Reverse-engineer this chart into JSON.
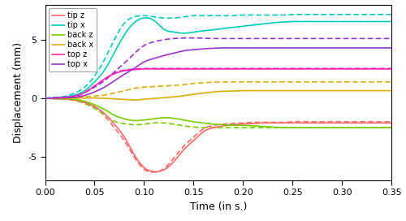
{
  "title": "",
  "xlabel": "Time (in s.)",
  "ylabel": "Displacement (mm)",
  "xlim": [
    0.0,
    0.35
  ],
  "ylim": [
    -7.0,
    8.0
  ],
  "series": {
    "tip_z": {
      "label": "tip z",
      "color": "#FF6666",
      "solid_points_y": [
        0.0,
        -0.03,
        -0.07,
        -0.15,
        -0.35,
        -0.7,
        -1.3,
        -2.2,
        -3.3,
        -4.8,
        -5.9,
        -6.25,
        -6.1,
        -5.4,
        -4.4,
        -3.6,
        -2.85,
        -2.5,
        -2.35,
        -2.25,
        -2.2,
        -2.15,
        -2.1,
        -2.1,
        -2.1,
        -2.1,
        -2.1,
        -2.1,
        -2.1,
        -2.1,
        -2.1,
        -2.1,
        -2.1,
        -2.1,
        -2.1,
        -2.1
      ],
      "dashed_points_y": [
        0.0,
        -0.03,
        -0.08,
        -0.18,
        -0.4,
        -0.8,
        -1.5,
        -2.5,
        -3.6,
        -5.0,
        -6.05,
        -6.3,
        -6.0,
        -5.1,
        -4.1,
        -3.3,
        -2.6,
        -2.3,
        -2.2,
        -2.15,
        -2.1,
        -2.05,
        -2.05,
        -2.05,
        -2.05,
        -2.0,
        -2.0,
        -2.0,
        -2.0,
        -2.0,
        -2.0,
        -2.0,
        -2.0,
        -2.0,
        -2.0,
        -2.0
      ]
    },
    "tip_x": {
      "label": "tip x",
      "color": "#00CCBB",
      "solid_points_y": [
        0.0,
        0.04,
        0.12,
        0.28,
        0.65,
        1.4,
        2.4,
        3.9,
        5.4,
        6.45,
        6.85,
        6.65,
        5.9,
        5.65,
        5.55,
        5.65,
        5.75,
        5.85,
        5.95,
        6.05,
        6.15,
        6.25,
        6.35,
        6.45,
        6.5,
        6.55,
        6.55,
        6.55,
        6.55,
        6.55,
        6.55,
        6.55,
        6.55,
        6.55,
        6.55,
        6.55
      ],
      "dashed_points_y": [
        0.0,
        0.08,
        0.18,
        0.45,
        0.95,
        1.9,
        3.3,
        5.0,
        6.4,
        6.95,
        7.05,
        6.95,
        6.85,
        6.85,
        6.95,
        7.05,
        7.05,
        7.05,
        7.05,
        7.05,
        7.1,
        7.1,
        7.1,
        7.1,
        7.1,
        7.15,
        7.15,
        7.15,
        7.15,
        7.15,
        7.15,
        7.15,
        7.15,
        7.15,
        7.15,
        7.15
      ]
    },
    "back_z": {
      "label": "back z",
      "color": "#77CC00",
      "solid_points_y": [
        0.0,
        -0.02,
        -0.04,
        -0.09,
        -0.25,
        -0.55,
        -0.95,
        -1.45,
        -1.75,
        -1.9,
        -1.85,
        -1.75,
        -1.65,
        -1.7,
        -1.85,
        -2.0,
        -2.1,
        -2.2,
        -2.25,
        -2.3,
        -2.3,
        -2.35,
        -2.4,
        -2.45,
        -2.5,
        -2.5,
        -2.5,
        -2.5,
        -2.5,
        -2.5,
        -2.5,
        -2.5,
        -2.5,
        -2.5,
        -2.5,
        -2.5
      ],
      "dashed_points_y": [
        0.0,
        -0.04,
        -0.09,
        -0.18,
        -0.45,
        -0.85,
        -1.4,
        -1.95,
        -2.15,
        -2.25,
        -2.2,
        -2.1,
        -2.1,
        -2.2,
        -2.35,
        -2.45,
        -2.5,
        -2.5,
        -2.5,
        -2.5,
        -2.5,
        -2.5,
        -2.5,
        -2.5,
        -2.5,
        -2.5,
        -2.5,
        -2.5,
        -2.5,
        -2.5,
        -2.5,
        -2.5,
        -2.5,
        -2.5,
        -2.5,
        -2.5
      ]
    },
    "back_x": {
      "label": "back x",
      "color": "#DDAA00",
      "solid_points_y": [
        0.0,
        0.005,
        0.01,
        0.02,
        0.03,
        0.03,
        0.0,
        -0.05,
        -0.1,
        -0.15,
        -0.08,
        -0.02,
        0.05,
        0.12,
        0.22,
        0.35,
        0.45,
        0.55,
        0.6,
        0.62,
        0.65,
        0.65,
        0.65,
        0.65,
        0.65,
        0.65,
        0.65,
        0.65,
        0.65,
        0.65,
        0.65,
        0.65,
        0.65,
        0.65,
        0.65,
        0.65
      ],
      "dashed_points_y": [
        0.0,
        0.02,
        0.04,
        0.08,
        0.14,
        0.19,
        0.28,
        0.45,
        0.65,
        0.85,
        0.95,
        1.0,
        1.05,
        1.1,
        1.18,
        1.27,
        1.33,
        1.38,
        1.4,
        1.4,
        1.4,
        1.4,
        1.4,
        1.4,
        1.4,
        1.4,
        1.4,
        1.4,
        1.4,
        1.4,
        1.4,
        1.4,
        1.4,
        1.4,
        1.4,
        1.4
      ]
    },
    "top_z": {
      "label": "top z",
      "color": "#FF22BB",
      "solid_points_y": [
        0.0,
        0.04,
        0.1,
        0.2,
        0.5,
        1.05,
        1.65,
        2.1,
        2.35,
        2.45,
        2.5,
        2.5,
        2.5,
        2.5,
        2.5,
        2.5,
        2.5,
        2.5,
        2.5,
        2.5,
        2.5,
        2.5,
        2.5,
        2.5,
        2.5,
        2.5,
        2.5,
        2.5,
        2.5,
        2.5,
        2.5,
        2.5,
        2.5,
        2.5,
        2.5,
        2.5
      ],
      "dashed_points_y": [
        0.0,
        0.04,
        0.1,
        0.2,
        0.5,
        1.05,
        1.65,
        2.15,
        2.4,
        2.5,
        2.55,
        2.55,
        2.55,
        2.55,
        2.55,
        2.55,
        2.55,
        2.55,
        2.55,
        2.55,
        2.55,
        2.55,
        2.55,
        2.55,
        2.55,
        2.55,
        2.55,
        2.55,
        2.55,
        2.55,
        2.55,
        2.55,
        2.55,
        2.55,
        2.55,
        2.55
      ]
    },
    "top_x": {
      "label": "top x",
      "color": "#9933CC",
      "solid_points_y": [
        0.0,
        0.02,
        0.04,
        0.09,
        0.25,
        0.55,
        0.95,
        1.5,
        2.05,
        2.55,
        3.1,
        3.4,
        3.65,
        3.85,
        4.05,
        4.15,
        4.22,
        4.27,
        4.3,
        4.3,
        4.3,
        4.3,
        4.3,
        4.3,
        4.3,
        4.3,
        4.3,
        4.3,
        4.3,
        4.3,
        4.3,
        4.3,
        4.3,
        4.3,
        4.3,
        4.3
      ],
      "dashed_points_y": [
        0.0,
        0.04,
        0.09,
        0.18,
        0.48,
        0.95,
        1.5,
        2.25,
        3.0,
        3.8,
        4.5,
        4.82,
        5.0,
        5.1,
        5.14,
        5.15,
        5.12,
        5.1,
        5.1,
        5.1,
        5.1,
        5.1,
        5.1,
        5.1,
        5.1,
        5.1,
        5.1,
        5.1,
        5.1,
        5.1,
        5.1,
        5.1,
        5.1,
        5.1,
        5.1,
        5.1
      ]
    }
  },
  "x_points": [
    0.0,
    0.01,
    0.02,
    0.03,
    0.04,
    0.05,
    0.06,
    0.07,
    0.08,
    0.09,
    0.1,
    0.11,
    0.12,
    0.13,
    0.14,
    0.15,
    0.16,
    0.17,
    0.18,
    0.19,
    0.2,
    0.21,
    0.22,
    0.23,
    0.24,
    0.25,
    0.26,
    0.27,
    0.28,
    0.29,
    0.3,
    0.31,
    0.32,
    0.33,
    0.34,
    0.35
  ],
  "legend_loc": "upper left",
  "xticks": [
    0.0,
    0.05,
    0.1,
    0.15,
    0.2,
    0.25,
    0.3,
    0.35
  ],
  "yticks": [
    -5,
    0,
    5
  ],
  "figsize": [
    5.0,
    2.72
  ],
  "dpi": 100,
  "bg_color": "#FFFFFF",
  "plot_bg_color": "#FFFFFF"
}
